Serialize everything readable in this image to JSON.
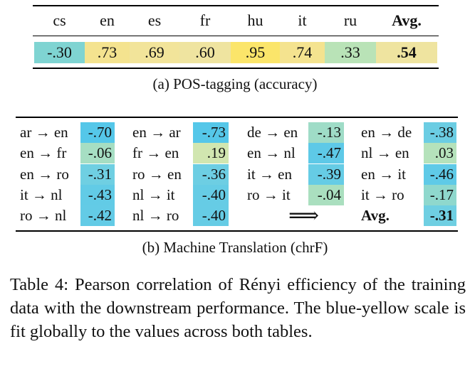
{
  "table_a": {
    "headers": [
      "cs",
      "en",
      "es",
      "fr",
      "hu",
      "it",
      "ru",
      "Avg."
    ],
    "values": [
      "-.30",
      ".73",
      ".69",
      ".60",
      ".95",
      ".74",
      ".33",
      ".54"
    ],
    "colors": [
      "#7fd4d2",
      "#f4e38f",
      "#f2e49a",
      "#efe4a0",
      "#fbe56a",
      "#f4e38f",
      "#b9e3b7",
      "#efe4a0"
    ],
    "caption": "(a) POS-tagging (accuracy)"
  },
  "table_b": {
    "pairs": [
      [
        "ar → en",
        "en → fr",
        "en → ro",
        "it → nl",
        "ro → nl"
      ],
      [
        "en → ar",
        "fr → en",
        "ro → en",
        "nl → it",
        "nl → ro"
      ],
      [
        "de → en",
        "en → nl",
        "it → en",
        "ro → it",
        ""
      ],
      [
        "en → de",
        "nl → en",
        "en → it",
        "it → ro",
        "Avg."
      ]
    ],
    "values": [
      [
        "-.70",
        "-.06",
        "-.31",
        "-.43",
        "-.42"
      ],
      [
        "-.73",
        ".19",
        "-.36",
        "-.40",
        "-.40"
      ],
      [
        "-.13",
        "-.47",
        "-.39",
        "-.04",
        ""
      ],
      [
        "-.38",
        ".03",
        "-.46",
        "-.17",
        "-.31"
      ]
    ],
    "colors": [
      [
        "#55c7e9",
        "#a6dec3",
        "#6fcfe2",
        "#62cbe6",
        "#63cbe6"
      ],
      [
        "#55c7e9",
        "#d1e6b0",
        "#6dcee3",
        "#66cce5",
        "#66cce5"
      ],
      [
        "#9fdcc7",
        "#5ec9e7",
        "#66cce5",
        "#aadfbf",
        ""
      ],
      [
        "#6bcde3",
        "#b5e2bb",
        "#5fcae7",
        "#8fd8cd",
        "#6fcfe2"
      ]
    ],
    "arrow": "⟹",
    "caption": "(b) Machine Translation (chrF)"
  },
  "caption_text": "Table 4: Pearson correlation of Rényi efficiency of the training data with the downstream performance. The blue-yellow scale is fit globally to the values across both tables."
}
